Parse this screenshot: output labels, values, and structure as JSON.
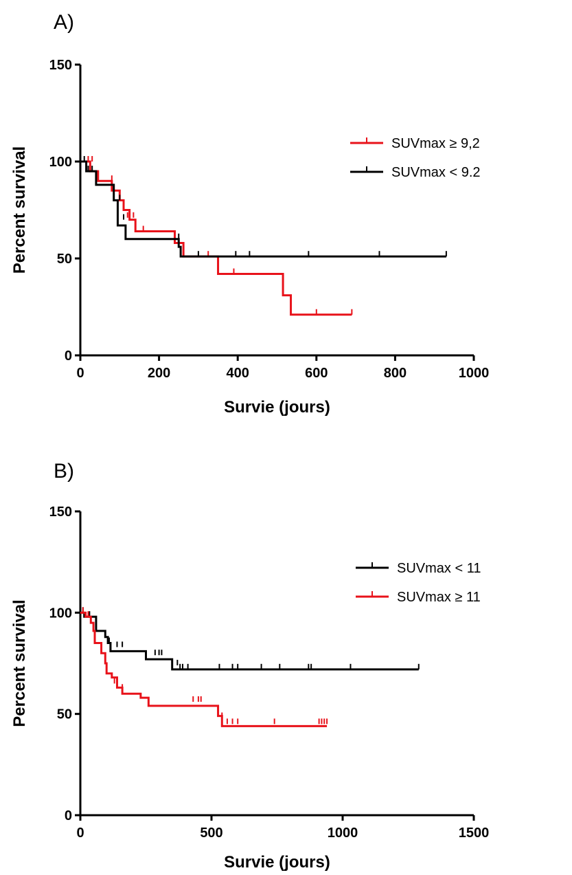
{
  "chart_data": [
    {
      "type": "line",
      "subtype": "kaplan-meier survival curve",
      "panel_label": "A)",
      "xlabel": "Survie (jours)",
      "ylabel": "Percent survival",
      "xlim": [
        0,
        1000
      ],
      "ylim": [
        0,
        150
      ],
      "xticks": [
        0,
        200,
        400,
        600,
        800,
        1000
      ],
      "yticks": [
        0,
        50,
        100,
        150
      ],
      "grid": false,
      "legend_position": "top-right",
      "series": [
        {
          "name": "SUVmax ≥ 9,2",
          "color": "#e8121a",
          "steps": [
            [
              0,
              100
            ],
            [
              25,
              95
            ],
            [
              45,
              90
            ],
            [
              80,
              85
            ],
            [
              100,
              80
            ],
            [
              110,
              75
            ],
            [
              125,
              70
            ],
            [
              140,
              64
            ],
            [
              240,
              58
            ],
            [
              262,
              51
            ],
            [
              350,
              42
            ],
            [
              515,
              31
            ],
            [
              535,
              21
            ],
            [
              690,
              21
            ]
          ],
          "censored": [
            [
              20,
              100
            ],
            [
              30,
              100
            ],
            [
              80,
              90
            ],
            [
              120,
              71
            ],
            [
              135,
              71
            ],
            [
              160,
              64
            ],
            [
              240,
              60
            ],
            [
              325,
              51
            ],
            [
              390,
              42
            ],
            [
              600,
              21
            ],
            [
              690,
              21
            ]
          ]
        },
        {
          "name": "SUVmax < 9.2",
          "color": "#000000",
          "steps": [
            [
              0,
              100
            ],
            [
              15,
              95
            ],
            [
              40,
              88
            ],
            [
              85,
              80
            ],
            [
              95,
              67
            ],
            [
              115,
              60
            ],
            [
              250,
              56
            ],
            [
              255,
              51
            ],
            [
              930,
              51
            ]
          ],
          "censored": [
            [
              10,
              100
            ],
            [
              20,
              95
            ],
            [
              30,
              95
            ],
            [
              100,
              80
            ],
            [
              110,
              70
            ],
            [
              250,
              60
            ],
            [
              300,
              51
            ],
            [
              395,
              51
            ],
            [
              430,
              51
            ],
            [
              580,
              51
            ],
            [
              760,
              51
            ],
            [
              930,
              51
            ]
          ]
        }
      ]
    },
    {
      "type": "line",
      "subtype": "kaplan-meier survival curve",
      "panel_label": "B)",
      "xlabel": "Survie (jours)",
      "ylabel": "Percent survival",
      "xlim": [
        0,
        1500
      ],
      "ylim": [
        0,
        150
      ],
      "xticks": [
        0,
        500,
        1000,
        1500
      ],
      "yticks": [
        0,
        50,
        100,
        150
      ],
      "grid": false,
      "legend_position": "top-right",
      "series": [
        {
          "name": "SUVmax < 11",
          "color": "#000000",
          "steps": [
            [
              0,
              100
            ],
            [
              15,
              98
            ],
            [
              60,
              91
            ],
            [
              95,
              88
            ],
            [
              105,
              85
            ],
            [
              115,
              81
            ],
            [
              250,
              77
            ],
            [
              350,
              72
            ],
            [
              1290,
              72
            ]
          ],
          "censored": [
            [
              10,
              100
            ],
            [
              35,
              98
            ],
            [
              60,
              91
            ],
            [
              110,
              85
            ],
            [
              140,
              83
            ],
            [
              160,
              83
            ],
            [
              285,
              79
            ],
            [
              300,
              79
            ],
            [
              310,
              79
            ],
            [
              370,
              74
            ],
            [
              380,
              72
            ],
            [
              390,
              72
            ],
            [
              410,
              72
            ],
            [
              530,
              72
            ],
            [
              580,
              72
            ],
            [
              600,
              72
            ],
            [
              690,
              72
            ],
            [
              760,
              72
            ],
            [
              870,
              72
            ],
            [
              880,
              72
            ],
            [
              1030,
              72
            ],
            [
              1290,
              72
            ]
          ]
        },
        {
          "name": "SUVmax ≥ 11",
          "color": "#e8121a",
          "steps": [
            [
              0,
              100
            ],
            [
              20,
              98
            ],
            [
              40,
              95
            ],
            [
              50,
              91
            ],
            [
              55,
              85
            ],
            [
              80,
              80
            ],
            [
              95,
              75
            ],
            [
              100,
              70
            ],
            [
              120,
              68
            ],
            [
              140,
              63
            ],
            [
              160,
              60
            ],
            [
              230,
              58
            ],
            [
              260,
              54
            ],
            [
              525,
              49
            ],
            [
              540,
              44
            ],
            [
              940,
              44
            ]
          ],
          "censored": [
            [
              10,
              100
            ],
            [
              30,
              98
            ],
            [
              130,
              65
            ],
            [
              160,
              62
            ],
            [
              430,
              56
            ],
            [
              450,
              56
            ],
            [
              460,
              56
            ],
            [
              540,
              48
            ],
            [
              560,
              45
            ],
            [
              580,
              45
            ],
            [
              600,
              45
            ],
            [
              740,
              45
            ],
            [
              910,
              45
            ],
            [
              920,
              45
            ],
            [
              930,
              45
            ],
            [
              940,
              45
            ]
          ]
        }
      ]
    }
  ]
}
